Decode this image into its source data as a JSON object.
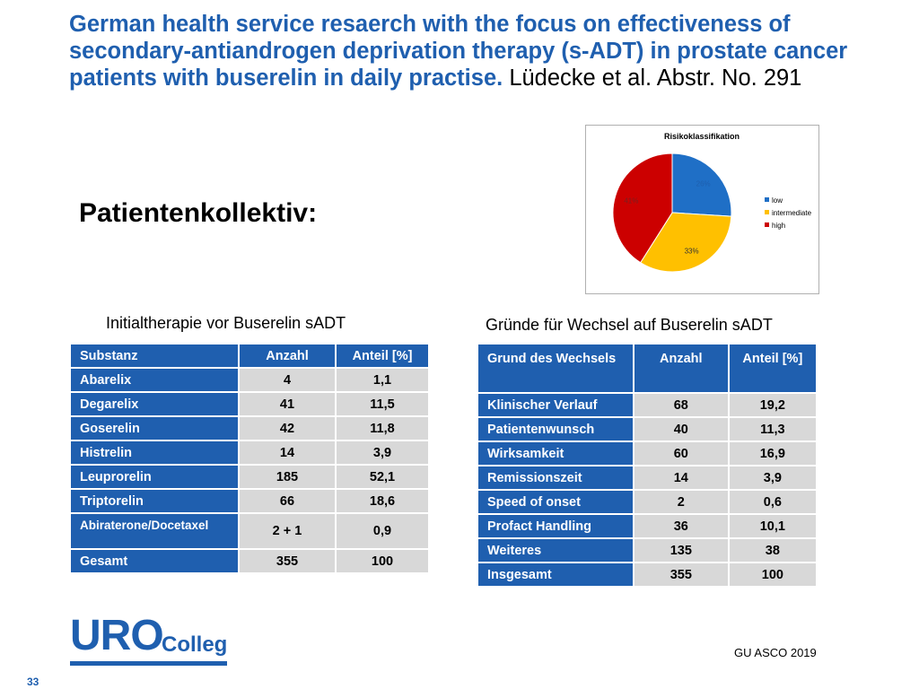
{
  "header": {
    "title": "German health service resaerch with the focus on effectiveness of secondary-antiandrogen deprivation therapy (s-ADT) in prostate cancer patients with buserelin in daily practise.",
    "authors": "Lüdecke et al. Abstr. No. 291"
  },
  "subtitle": "Patientenkollektiv:",
  "table1": {
    "caption": "Initialtherapie vor Buserelin sADT",
    "headers": [
      "Substanz",
      "Anzahl",
      "Anteil [%]"
    ],
    "rows": [
      [
        "Abarelix",
        "4",
        "1,1"
      ],
      [
        "Degarelix",
        "41",
        "11,5"
      ],
      [
        "Goserelin",
        "42",
        "11,8"
      ],
      [
        "Histrelin",
        "14",
        "3,9"
      ],
      [
        "Leuprorelin",
        "185",
        "52,1"
      ],
      [
        "Triptorelin",
        "66",
        "18,6"
      ],
      [
        "Abiraterone/Docetaxel",
        "2 + 1",
        "0,9"
      ],
      [
        "Gesamt",
        "355",
        "100"
      ]
    ]
  },
  "table2": {
    "caption": "Gründe für Wechsel auf Buserelin sADT",
    "headers": [
      "Grund des Wechsels",
      "Anzahl",
      "Anteil [%]"
    ],
    "rows": [
      [
        "Klinischer Verlauf",
        "68",
        "19,2"
      ],
      [
        "Patientenwunsch",
        "40",
        "11,3"
      ],
      [
        "Wirksamkeit",
        "60",
        "16,9"
      ],
      [
        "Remissionszeit",
        "14",
        "3,9"
      ],
      [
        "Speed of onset",
        "2",
        "0,6"
      ],
      [
        "Profact Handling",
        "36",
        "10,1"
      ],
      [
        "Weiteres",
        "135",
        "38"
      ],
      [
        "Insgesamt",
        "355",
        "100"
      ]
    ]
  },
  "chart_data": {
    "type": "pie",
    "title": "Risikoklassifikation",
    "categories": [
      "low",
      "intermediate",
      "high"
    ],
    "values": [
      26,
      33,
      41
    ],
    "labels": [
      "26%",
      "33%",
      "41%"
    ],
    "colors": [
      "#1f6fc6",
      "#ffc000",
      "#cc0000"
    ],
    "legend": "right"
  },
  "logo": {
    "part1": "URO",
    "part2": "Colleg"
  },
  "footer": {
    "source": "GU ASCO 2019",
    "page": "33"
  }
}
